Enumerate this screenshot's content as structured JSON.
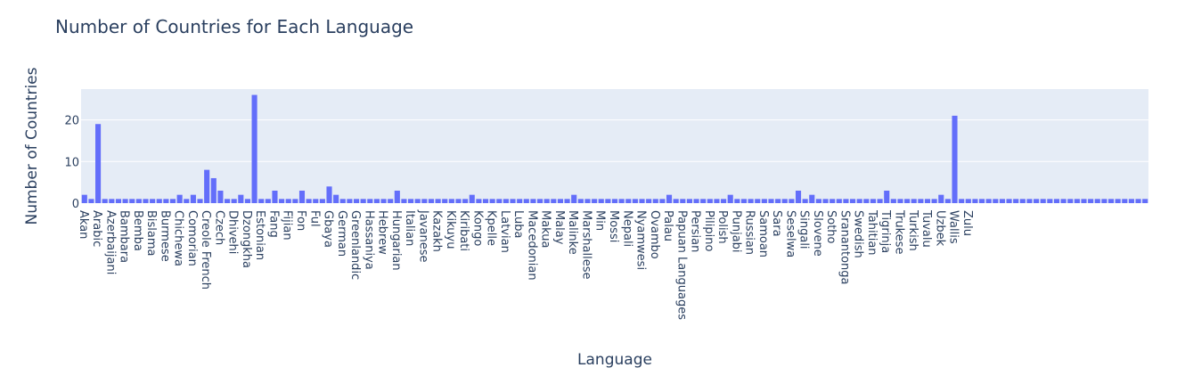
{
  "chart_data": {
    "type": "bar",
    "title": "Number of Countries for Each Language",
    "xlabel": "Language",
    "ylabel": "Number of Countries",
    "ylim": [
      0,
      27.4
    ],
    "yticks": [
      0,
      10,
      20
    ],
    "grid": true,
    "colors": {
      "bar": "#636efa",
      "plot_bg": "#e5ecf6",
      "grid": "#ffffff",
      "text": "#2a3f5f"
    },
    "labeled_categories": [
      "Akan",
      "Arabic",
      "Azerbaijani",
      "Bambara",
      "Bemba",
      "Bislama",
      "Burmese",
      "Chichewa",
      "Comorian",
      "Creole French",
      "Czech",
      "Dhivehi",
      "Dzongkha",
      "Estonian",
      "Fang",
      "Fijian",
      "Fon",
      "Ful",
      "Gbaya",
      "German",
      "Greenlandic",
      "Hassaniya",
      "Hebrew",
      "Hungarian",
      "Italian",
      "Javanese",
      "Kazakh",
      "Kikuyu",
      "Kiribati",
      "Kongo",
      "Kpelle",
      "Latvian",
      "Luba",
      "Macedonian",
      "Makua",
      "Malay",
      "Malinke",
      "Marshallese",
      "Min",
      "Mossi",
      "Nepali",
      "Nyamwesi",
      "Ovambo",
      "Palau",
      "Papuan Languages",
      "Persian",
      "Pilipino",
      "Polish",
      "Punjabi",
      "Russian",
      "Samoan",
      "Sara",
      "Seselwa",
      "Singali",
      "Slovene",
      "Sotho",
      "Sranantonga",
      "Swedish",
      "Tahitian",
      "Tigrinja",
      "Trukese",
      "Turkish",
      "Tuvalu",
      "Uzbek",
      "Wallis",
      "Zulu"
    ],
    "values": [
      2,
      1,
      19,
      1,
      1,
      1,
      1,
      1,
      1,
      1,
      1,
      1,
      1,
      1,
      2,
      1,
      2,
      1,
      8,
      6,
      3,
      1,
      1,
      2,
      1,
      26,
      1,
      1,
      3,
      1,
      1,
      1,
      3,
      1,
      1,
      1,
      4,
      2,
      1,
      1,
      1,
      1,
      1,
      1,
      1,
      1,
      3,
      1,
      1,
      1,
      1,
      1,
      1,
      1,
      1,
      1,
      1,
      2,
      1,
      1,
      1,
      1,
      1,
      1,
      1,
      1,
      1,
      1,
      1,
      1,
      1,
      1,
      2,
      1,
      1,
      1,
      1,
      1,
      1,
      1,
      1,
      1,
      1,
      1,
      1,
      1,
      2,
      1,
      1,
      1,
      1,
      1,
      1,
      1,
      1,
      2,
      1,
      1,
      1,
      1,
      1,
      1,
      1,
      1,
      1,
      3,
      1,
      2,
      1,
      1,
      1,
      1,
      1,
      1,
      1,
      1,
      1,
      1,
      3,
      1,
      1,
      1,
      1,
      1,
      1,
      1,
      2,
      1,
      21,
      1,
      1,
      1,
      1,
      1,
      1,
      1,
      1,
      1,
      1,
      1,
      1,
      1,
      1,
      1,
      1,
      1,
      1,
      1,
      1,
      1,
      1,
      1,
      1,
      1,
      1,
      1,
      1
    ]
  }
}
